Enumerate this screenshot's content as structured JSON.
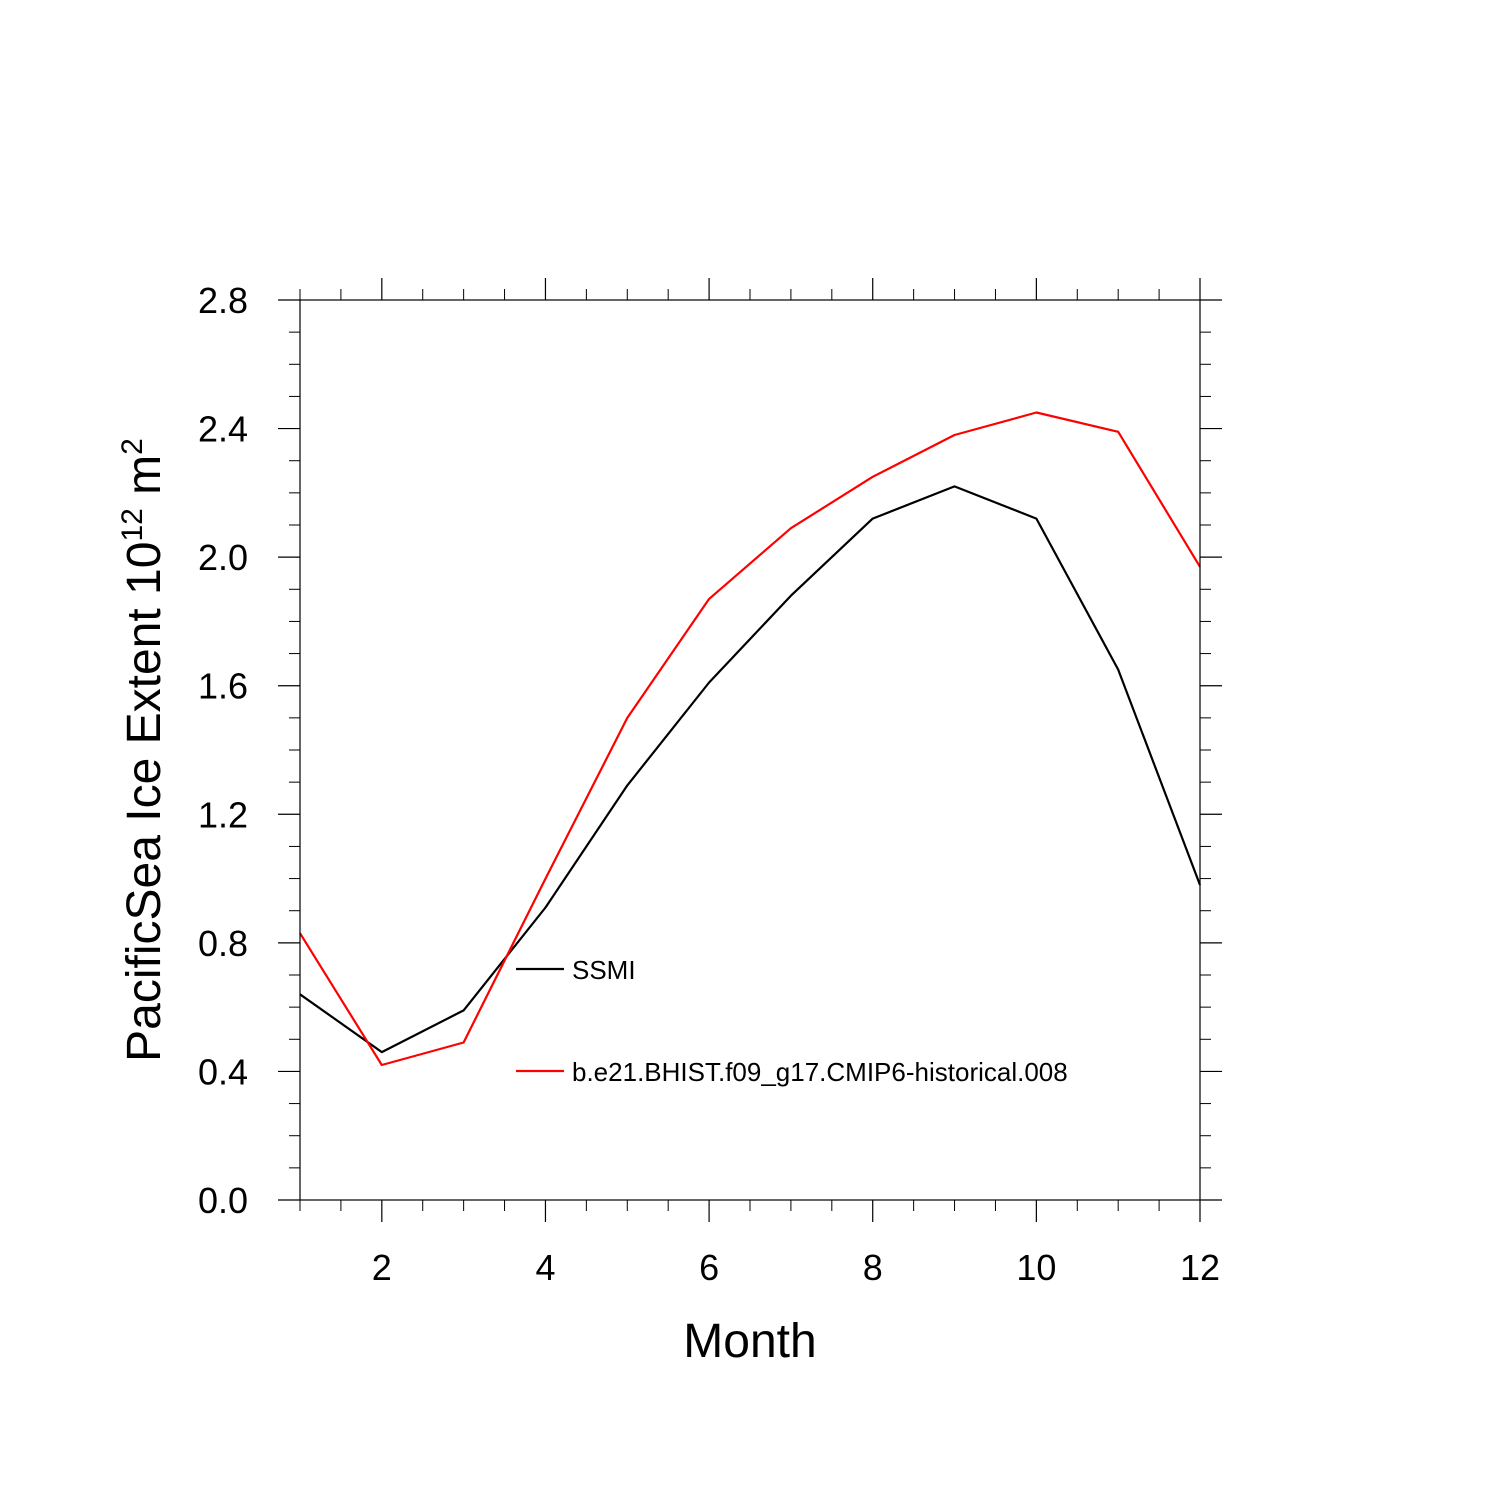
{
  "chart_data": {
    "type": "line",
    "xlabel": "Month",
    "ylabel": {
      "main": "PacificSea Ice Extent 10",
      "exponent": "12",
      "unit": " m",
      "unit_exponent": "2"
    },
    "xlim": [
      1,
      12
    ],
    "ylim": [
      0.0,
      2.8
    ],
    "x_ticks": [
      2,
      4,
      6,
      8,
      10,
      12
    ],
    "x_tick_labels": [
      "2",
      "4",
      "6",
      "8",
      "10",
      "12"
    ],
    "y_ticks": [
      0.0,
      0.4,
      0.8,
      1.2,
      1.6,
      2.0,
      2.4,
      2.8
    ],
    "y_tick_labels": [
      "0.0",
      "0.4",
      "0.8",
      "1.2",
      "1.6",
      "2.0",
      "2.4",
      "2.8"
    ],
    "grid": false,
    "legend_placement": "inside, lower-center",
    "x": [
      1,
      2,
      3,
      4,
      5,
      6,
      7,
      8,
      9,
      10,
      11,
      12
    ],
    "series": [
      {
        "name": "SSMI",
        "color": "#000000",
        "values": [
          0.64,
          0.46,
          0.59,
          0.91,
          1.29,
          1.61,
          1.88,
          2.12,
          2.22,
          2.12,
          1.65,
          0.98
        ]
      },
      {
        "name": "b.e21.BHIST.f09_g17.CMIP6-historical.008",
        "color": "#ff0000",
        "values": [
          0.83,
          0.42,
          0.49,
          1.0,
          1.5,
          1.87,
          2.09,
          2.25,
          2.38,
          2.45,
          2.39,
          1.97
        ]
      }
    ]
  }
}
